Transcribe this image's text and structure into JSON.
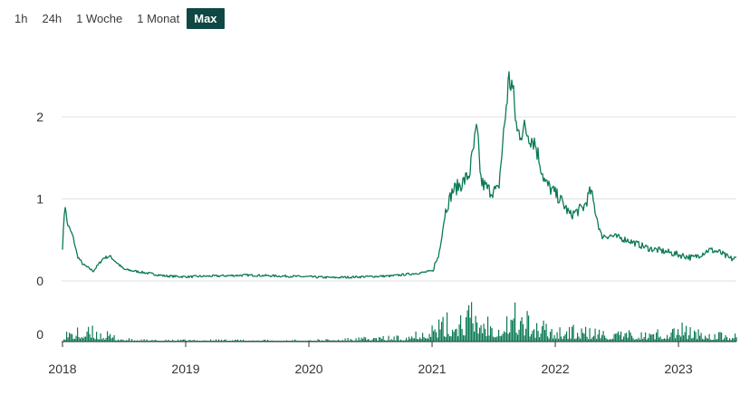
{
  "range_tabs": [
    {
      "label": "1h",
      "active": false
    },
    {
      "label": "24h",
      "active": false
    },
    {
      "label": "1 Woche",
      "active": false
    },
    {
      "label": "1 Monat",
      "active": false
    },
    {
      "label": "Max",
      "active": true
    }
  ],
  "colors": {
    "line": "#0b7a55",
    "volume": "#0b7a55",
    "grid": "#e2e2e2",
    "active_tab": "#0e4743"
  },
  "chart_data": [
    {
      "type": "line",
      "title": "",
      "xlabel": "",
      "ylabel": "",
      "x_ticks": [
        "2018",
        "2019",
        "2020",
        "2021",
        "2022",
        "2023"
      ],
      "y_ticks": [
        "0",
        "1",
        "2"
      ],
      "ylim": [
        0,
        2.5
      ],
      "grid": true,
      "x": [
        "2018-01-01",
        "2018-01-08",
        "2018-01-15",
        "2018-02-01",
        "2018-02-15",
        "2018-03-01",
        "2018-04-01",
        "2018-05-01",
        "2018-05-20",
        "2018-07-01",
        "2018-09-01",
        "2018-11-01",
        "2019-01-01",
        "2019-04-01",
        "2019-07-01",
        "2019-10-01",
        "2020-01-01",
        "2020-03-15",
        "2020-06-01",
        "2020-09-01",
        "2020-12-01",
        "2021-01-01",
        "2021-01-20",
        "2021-02-10",
        "2021-03-01",
        "2021-04-01",
        "2021-04-20",
        "2021-05-12",
        "2021-05-25",
        "2021-06-20",
        "2021-07-15",
        "2021-08-15",
        "2021-08-25",
        "2021-09-10",
        "2021-10-01",
        "2021-11-01",
        "2021-12-01",
        "2022-01-15",
        "2022-02-15",
        "2022-03-25",
        "2022-04-15",
        "2022-05-15",
        "2022-06-15",
        "2022-08-01",
        "2022-10-01",
        "2022-12-01",
        "2023-01-01",
        "2023-02-15",
        "2023-04-01",
        "2023-05-01",
        "2023-06-01"
      ],
      "values": [
        0.4,
        0.95,
        0.7,
        0.55,
        0.3,
        0.2,
        0.12,
        0.28,
        0.3,
        0.14,
        0.1,
        0.06,
        0.05,
        0.06,
        0.07,
        0.06,
        0.05,
        0.04,
        0.05,
        0.06,
        0.1,
        0.12,
        0.3,
        0.85,
        1.1,
        1.2,
        1.3,
        1.85,
        1.2,
        1.1,
        1.1,
        2.45,
        2.4,
        1.8,
        1.85,
        1.7,
        1.2,
        1.0,
        0.8,
        0.9,
        1.1,
        0.55,
        0.55,
        0.5,
        0.4,
        0.35,
        0.32,
        0.28,
        0.38,
        0.35,
        0.27
      ]
    },
    {
      "type": "bar",
      "title": "",
      "y_ticks": [
        "0"
      ],
      "x": [
        "2018-01",
        "2018-04",
        "2018-07",
        "2018-10",
        "2019-01",
        "2019-04",
        "2019-07",
        "2019-10",
        "2020-01",
        "2020-04",
        "2020-07",
        "2020-10",
        "2021-01",
        "2021-03",
        "2021-05",
        "2021-07",
        "2021-09",
        "2021-11",
        "2022-01",
        "2022-04",
        "2022-07",
        "2022-10",
        "2023-01",
        "2023-04",
        "2023-06"
      ],
      "values": [
        0.3,
        0.35,
        0.08,
        0.04,
        0.05,
        0.06,
        0.05,
        0.04,
        0.05,
        0.07,
        0.12,
        0.15,
        0.5,
        0.7,
        1.0,
        0.6,
        1.0,
        0.55,
        0.4,
        0.35,
        0.25,
        0.25,
        0.45,
        0.25,
        0.2
      ]
    }
  ]
}
